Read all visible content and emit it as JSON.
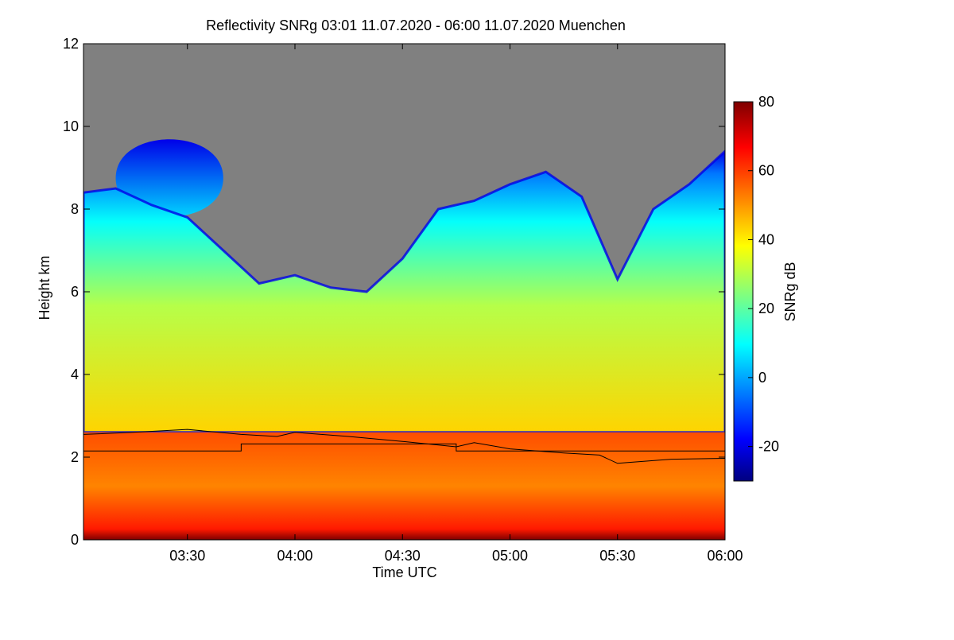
{
  "chart_data": {
    "type": "heatmap",
    "title": "Reflectivity SNRg   03:01 11.07.2020 - 06:00 11.07.2020 Muenchen",
    "xlabel": "Time UTC",
    "ylabel": "Height km",
    "xlim": [
      "03:01",
      "06:00"
    ],
    "ylim": [
      0,
      12
    ],
    "x_ticks": [
      "03:30",
      "04:00",
      "04:30",
      "05:00",
      "05:30",
      "06:00"
    ],
    "y_ticks": [
      0,
      2,
      4,
      6,
      8,
      10,
      12
    ],
    "no_signal_color": "#808080",
    "colorbar": {
      "label": "SNRg dB",
      "range": [
        -30,
        80
      ],
      "ticks": [
        -20,
        0,
        20,
        40,
        60,
        80
      ],
      "colormap": "jet"
    },
    "field": {
      "cloud_top_km": [
        {
          "x": "03:01",
          "y": 8.4
        },
        {
          "x": "03:10",
          "y": 8.5
        },
        {
          "x": "03:20",
          "y": 8.1
        },
        {
          "x": "03:30",
          "y": 7.8
        },
        {
          "x": "03:40",
          "y": 7.0
        },
        {
          "x": "03:50",
          "y": 6.2
        },
        {
          "x": "04:00",
          "y": 6.4
        },
        {
          "x": "04:10",
          "y": 6.1
        },
        {
          "x": "04:20",
          "y": 6.0
        },
        {
          "x": "04:30",
          "y": 6.8
        },
        {
          "x": "04:40",
          "y": 8.0
        },
        {
          "x": "04:50",
          "y": 8.2
        },
        {
          "x": "05:00",
          "y": 8.6
        },
        {
          "x": "05:10",
          "y": 8.9
        },
        {
          "x": "05:20",
          "y": 8.3
        },
        {
          "x": "05:30",
          "y": 6.3
        },
        {
          "x": "05:40",
          "y": 8.0
        },
        {
          "x": "05:50",
          "y": 8.6
        },
        {
          "x": "06:00",
          "y": 9.4
        }
      ],
      "upper_cloud_layer": {
        "from": "03:10",
        "to": "03:40",
        "bottom_km": 7.5,
        "top_km": 10.0
      },
      "bright_band_km": 2.6,
      "surface_max_dB": 80,
      "rain_dB": 60,
      "cloud_mid_dB": 35,
      "cloud_edge_dB": -20
    },
    "series": [
      {
        "values": [
          {
            "x": "03:01",
            "y": 2.55
          },
          {
            "x": "03:15",
            "y": 2.6
          },
          {
            "x": "03:30",
            "y": 2.67
          },
          {
            "x": "03:45",
            "y": 2.55
          },
          {
            "x": "03:55",
            "y": 2.5
          },
          {
            "x": "04:00",
            "y": 2.6
          },
          {
            "x": "04:15",
            "y": 2.5
          },
          {
            "x": "04:30",
            "y": 2.38
          },
          {
            "x": "04:45",
            "y": 2.25
          },
          {
            "x": "04:50",
            "y": 2.35
          },
          {
            "x": "05:00",
            "y": 2.2
          },
          {
            "x": "05:15",
            "y": 2.1
          },
          {
            "x": "05:25",
            "y": 2.05
          },
          {
            "x": "05:30",
            "y": 1.85
          },
          {
            "x": "05:45",
            "y": 1.95
          },
          {
            "x": "06:00",
            "y": 1.97
          }
        ]
      },
      {
        "values": [
          {
            "x": "03:01",
            "y": 2.15
          },
          {
            "x": "03:45",
            "y": 2.15
          },
          {
            "x": "03:45",
            "y": 2.32
          },
          {
            "x": "04:45",
            "y": 2.32
          },
          {
            "x": "04:45",
            "y": 2.15
          },
          {
            "x": "06:00",
            "y": 2.15
          }
        ]
      }
    ]
  }
}
